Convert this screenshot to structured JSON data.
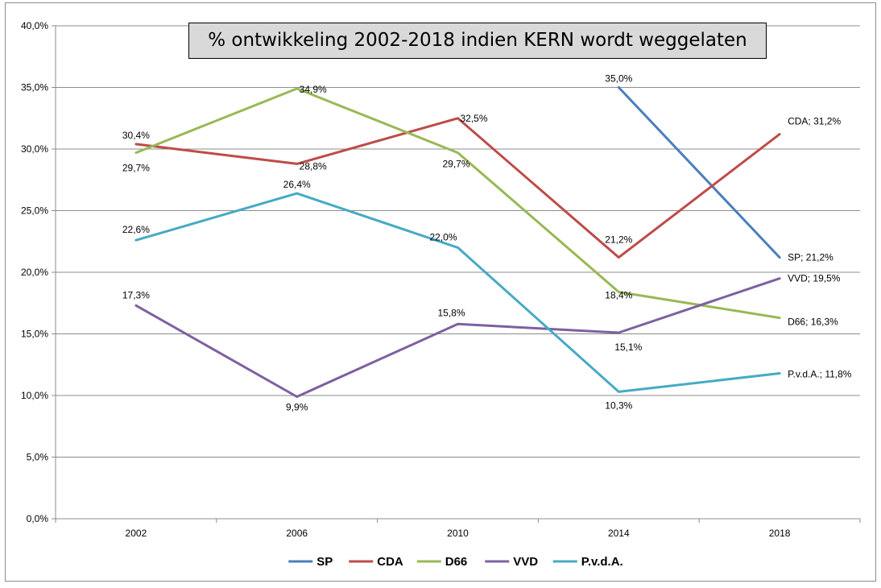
{
  "chart_data": {
    "type": "line",
    "title": "% ontwikkeling 2002-2018 indien KERN wordt weggelaten",
    "categories": [
      "2002",
      "2006",
      "2010",
      "2014",
      "2018"
    ],
    "ylim": [
      0,
      40
    ],
    "yticks": [
      "0,0%",
      "5,0%",
      "10,0%",
      "15,0%",
      "20,0%",
      "25,0%",
      "30,0%",
      "35,0%",
      "40,0%"
    ],
    "grid": true,
    "legend": "bottom",
    "series": [
      {
        "name": "SP",
        "color": "#4a7ebb",
        "values": [
          null,
          null,
          null,
          35.0,
          21.2
        ],
        "labels": [
          null,
          null,
          null,
          "35,0%",
          "SP; 21,2%"
        ]
      },
      {
        "name": "CDA",
        "color": "#be4b48",
        "values": [
          30.4,
          28.8,
          32.5,
          21.2,
          31.2
        ],
        "labels": [
          "30,4%",
          "28,8%",
          "32,5%",
          "21,2%",
          "CDA; 31,2%"
        ]
      },
      {
        "name": "D66",
        "color": "#98b954",
        "values": [
          29.7,
          34.9,
          29.7,
          18.4,
          16.3
        ],
        "labels": [
          "29,7%",
          "34,9%",
          "29,7%",
          "18,4%",
          "D66; 16,3%"
        ]
      },
      {
        "name": "VVD",
        "color": "#7d60a0",
        "values": [
          17.3,
          9.9,
          15.8,
          15.1,
          19.5
        ],
        "labels": [
          "17,3%",
          "9,9%",
          "15,8%",
          "15,1%",
          "VVD; 19,5%"
        ]
      },
      {
        "name": "P.v.d.A.",
        "color": "#46aac5",
        "values": [
          22.6,
          26.4,
          22.0,
          10.3,
          11.8
        ],
        "labels": [
          "22,6%",
          "26,4%",
          "22,0%",
          "10,3%",
          "P.v.d.A.; 11,8%"
        ]
      }
    ]
  }
}
